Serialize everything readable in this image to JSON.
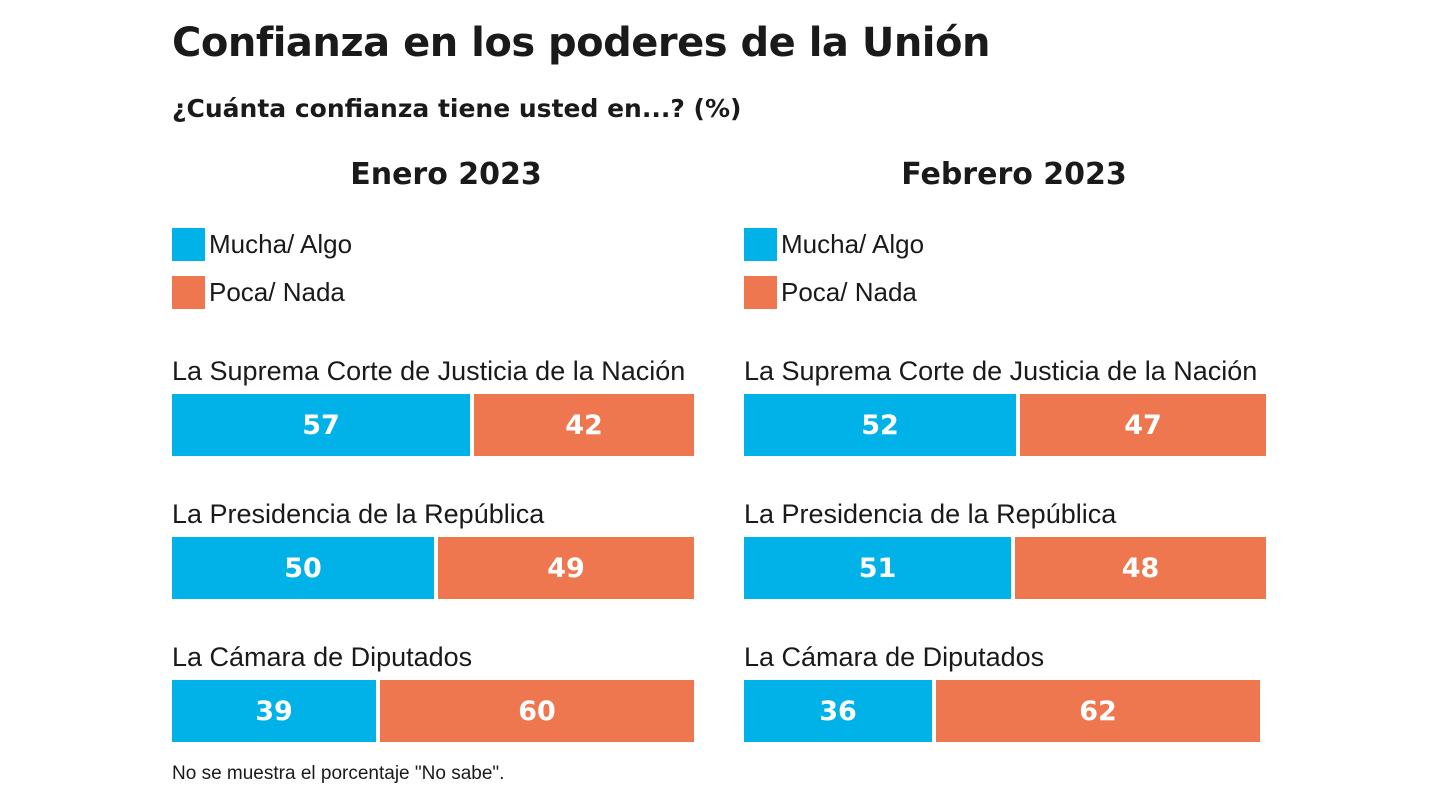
{
  "title": "Confianza en los poderes de la Unión",
  "subtitle": "¿Cuánta confianza tiene usted en...? (%)",
  "note": "No se muestra el porcentaje \"No sabe\".",
  "colors": {
    "mucha": "#00b2e7",
    "poca": "#ef7750"
  },
  "chart_data": [
    {
      "type": "bar",
      "orientation": "horizontal",
      "stacked": true,
      "title": "Enero 2023",
      "categories": [
        "La Suprema Corte de Justicia de la Nación",
        "La Presidencia de la República",
        "La Cámara de Diputados"
      ],
      "series": [
        {
          "name": "Mucha/ Algo",
          "values": [
            57,
            50,
            39
          ]
        },
        {
          "name": "Poca/ Nada",
          "values": [
            42,
            49,
            60
          ]
        }
      ],
      "xlim": [
        0,
        100
      ],
      "legend": "top-left"
    },
    {
      "type": "bar",
      "orientation": "horizontal",
      "stacked": true,
      "title": "Febrero 2023",
      "categories": [
        "La Suprema Corte de Justicia de la Nación",
        "La Presidencia de la República",
        "La Cámara de Diputados"
      ],
      "series": [
        {
          "name": "Mucha/ Algo",
          "values": [
            52,
            51,
            36
          ]
        },
        {
          "name": "Poca/ Nada",
          "values": [
            47,
            48,
            62
          ]
        }
      ],
      "xlim": [
        0,
        100
      ],
      "legend": "top-left"
    }
  ]
}
